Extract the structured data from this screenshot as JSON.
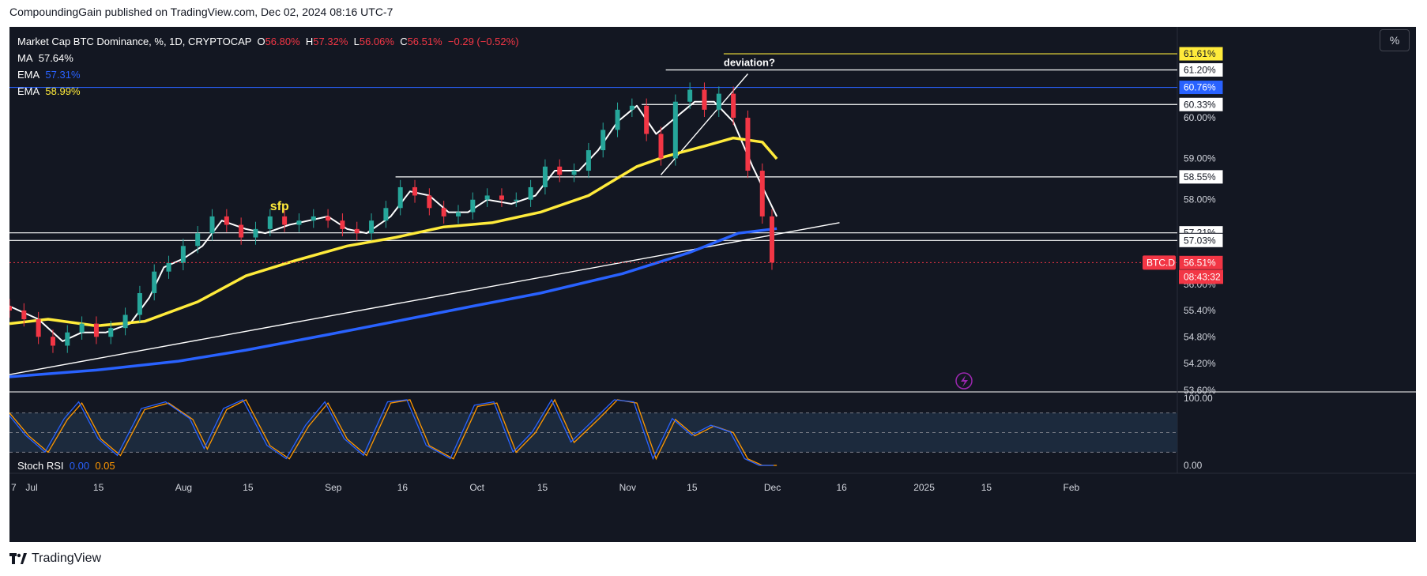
{
  "publisher": "CompoundingGain published on TradingView.com, Dec 02, 2024 08:16 UTC-7",
  "footer": {
    "brand": "TradingView",
    "logo_icon": "tradingview-logo-icon"
  },
  "toolbar": {
    "percent_button": "%"
  },
  "legend": {
    "symbol": "Market Cap BTC Dominance, %, 1D, CRYPTOCAP",
    "o_label": "O",
    "o": "56.80%",
    "h_label": "H",
    "h": "57.32%",
    "l_label": "L",
    "l": "56.06%",
    "c_label": "C",
    "c": "56.51%",
    "change": "−0.29 (−0.52%)",
    "ma_label": "MA",
    "ma": "57.64%",
    "ema1_label": "EMA",
    "ema1": "57.31%",
    "ema2_label": "EMA",
    "ema2": "58.99%"
  },
  "stoch": {
    "label": "Stoch RSI",
    "k": "0.00",
    "d": "0.05"
  },
  "colors": {
    "background": "#131722",
    "up": "#26a69a",
    "down": "#f23645",
    "ma_line": "#ffffff",
    "ema_fast": "#2962ff",
    "ema_slow": "#ffeb3b",
    "stoch_k": "#2962ff",
    "stoch_d": "#ff9800",
    "price_badge": "#f23645"
  },
  "chart_data": [
    {
      "type": "candlestick",
      "title": "Market Cap BTC Dominance, %, 1D, CRYPTOCAP",
      "y_axis_scale": "log",
      "ylim": [
        53.6,
        62.3
      ],
      "y_ticks": [
        "53.60%",
        "54.20%",
        "54.80%",
        "55.40%",
        "56.00%",
        "58.00%",
        "59.00%",
        "60.00%"
      ],
      "x_ticks": [
        {
          "date": "2024-06-27",
          "label": "7"
        },
        {
          "date": "2024-07-01",
          "label": "Jul"
        },
        {
          "date": "2024-07-15",
          "label": "15"
        },
        {
          "date": "2024-08-01",
          "label": "Aug"
        },
        {
          "date": "2024-08-15",
          "label": "15"
        },
        {
          "date": "2024-09-01",
          "label": "Sep"
        },
        {
          "date": "2024-09-16",
          "label": "16"
        },
        {
          "date": "2024-10-01",
          "label": "Oct"
        },
        {
          "date": "2024-10-15",
          "label": "15"
        },
        {
          "date": "2024-11-01",
          "label": "Nov"
        },
        {
          "date": "2024-11-15",
          "label": "15"
        },
        {
          "date": "2024-12-01",
          "label": "Dec"
        },
        {
          "date": "2024-12-16",
          "label": "16"
        },
        {
          "date": "2025-01-01",
          "label": "2025"
        },
        {
          "date": "2025-01-15",
          "label": "15"
        },
        {
          "date": "2025-02-01",
          "label": "Feb"
        }
      ],
      "x_range": [
        "2024-06-27",
        "2025-02-24"
      ],
      "last_close": 56.51,
      "price_labels": [
        {
          "text": "61.61%",
          "value": 61.61,
          "style": "yellow"
        },
        {
          "text": "61.20%",
          "value": 61.2,
          "style": "white"
        },
        {
          "text": "60.76%",
          "value": 60.76,
          "style": "blue"
        },
        {
          "text": "60.33%",
          "value": 60.33,
          "style": "white"
        },
        {
          "text": "58.55%",
          "value": 58.55,
          "style": "white"
        },
        {
          "text": "57.21%",
          "value": 57.21,
          "style": "white"
        },
        {
          "text": "57.03%",
          "value": 57.03,
          "style": "white"
        },
        {
          "text": "56.51%",
          "value": 56.51,
          "style": "red"
        }
      ],
      "symbol_badge": "BTC.D",
      "countdown": "08:43:32",
      "annotations": [
        {
          "text": "sfp",
          "date": "2024-08-20",
          "value": 57.75
        },
        {
          "text": "deviation?",
          "date": "2024-11-22",
          "value": 61.3
        }
      ],
      "horizontal_levels": [
        {
          "value": 61.61,
          "from": "2024-11-22",
          "color": "#ffeb3b"
        },
        {
          "value": 61.2,
          "from": "2024-11-10",
          "color": "#ffffff"
        },
        {
          "value": 60.76,
          "from": "2024-06-27",
          "color": "#2962ff"
        },
        {
          "value": 60.33,
          "from": "2024-11-05",
          "color": "#ffffff"
        },
        {
          "value": 58.55,
          "from": "2024-09-15",
          "color": "#ffffff"
        },
        {
          "value": 57.21,
          "from": "2024-06-27",
          "color": "#ffffff"
        },
        {
          "value": 57.03,
          "from": "2024-06-27",
          "color": "#ffffff"
        }
      ],
      "trendlines": [
        {
          "from": [
            "2024-06-27",
            53.95
          ],
          "to": [
            "2024-12-16",
            57.45
          ]
        },
        {
          "from": [
            "2024-11-09",
            58.6
          ],
          "to": [
            "2024-11-27",
            61.1
          ]
        }
      ],
      "series": [
        {
          "name": "MA",
          "value": 57.64,
          "color": "#ffffff",
          "points": [
            [
              "2024-06-27",
              55.5
            ],
            [
              "2024-07-03",
              55.2
            ],
            [
              "2024-07-08",
              54.7
            ],
            [
              "2024-07-12",
              54.9
            ],
            [
              "2024-07-17",
              54.9
            ],
            [
              "2024-07-22",
              55.1
            ],
            [
              "2024-07-26",
              55.7
            ],
            [
              "2024-07-29",
              56.4
            ],
            [
              "2024-08-02",
              56.6
            ],
            [
              "2024-08-06",
              56.9
            ],
            [
              "2024-08-10",
              57.5
            ],
            [
              "2024-08-15",
              57.3
            ],
            [
              "2024-08-19",
              57.2
            ],
            [
              "2024-08-24",
              57.4
            ],
            [
              "2024-08-28",
              57.5
            ],
            [
              "2024-09-01",
              57.6
            ],
            [
              "2024-09-05",
              57.3
            ],
            [
              "2024-09-09",
              57.2
            ],
            [
              "2024-09-14",
              57.6
            ],
            [
              "2024-09-18",
              58.2
            ],
            [
              "2024-09-22",
              58.1
            ],
            [
              "2024-09-26",
              57.7
            ],
            [
              "2024-09-30",
              57.7
            ],
            [
              "2024-10-04",
              58.0
            ],
            [
              "2024-10-09",
              57.9
            ],
            [
              "2024-10-14",
              58.1
            ],
            [
              "2024-10-18",
              58.7
            ],
            [
              "2024-10-23",
              58.7
            ],
            [
              "2024-10-27",
              59.2
            ],
            [
              "2024-10-31",
              59.9
            ],
            [
              "2024-11-04",
              60.3
            ],
            [
              "2024-11-08",
              59.6
            ],
            [
              "2024-11-12",
              60.0
            ],
            [
              "2024-11-16",
              60.4
            ],
            [
              "2024-11-20",
              60.4
            ],
            [
              "2024-11-24",
              59.9
            ],
            [
              "2024-11-28",
              58.8
            ],
            [
              "2024-12-03",
              57.6
            ]
          ]
        },
        {
          "name": "EMA",
          "value": 57.31,
          "color": "#2962ff",
          "points": [
            [
              "2024-06-27",
              53.9
            ],
            [
              "2024-07-15",
              54.05
            ],
            [
              "2024-08-01",
              54.25
            ],
            [
              "2024-08-15",
              54.5
            ],
            [
              "2024-09-01",
              54.85
            ],
            [
              "2024-09-15",
              55.15
            ],
            [
              "2024-10-01",
              55.5
            ],
            [
              "2024-10-15",
              55.8
            ],
            [
              "2024-11-01",
              56.25
            ],
            [
              "2024-11-15",
              56.75
            ],
            [
              "2024-11-25",
              57.2
            ],
            [
              "2024-12-03",
              57.31
            ]
          ]
        },
        {
          "name": "EMA",
          "value": 58.99,
          "color": "#ffeb3b",
          "points": [
            [
              "2024-06-27",
              55.1
            ],
            [
              "2024-07-05",
              55.2
            ],
            [
              "2024-07-15",
              55.05
            ],
            [
              "2024-07-25",
              55.15
            ],
            [
              "2024-08-05",
              55.6
            ],
            [
              "2024-08-15",
              56.2
            ],
            [
              "2024-08-25",
              56.55
            ],
            [
              "2024-09-05",
              56.9
            ],
            [
              "2024-09-15",
              57.1
            ],
            [
              "2024-09-25",
              57.35
            ],
            [
              "2024-10-05",
              57.45
            ],
            [
              "2024-10-15",
              57.7
            ],
            [
              "2024-10-25",
              58.1
            ],
            [
              "2024-11-04",
              58.8
            ],
            [
              "2024-11-10",
              59.05
            ],
            [
              "2024-11-18",
              59.3
            ],
            [
              "2024-11-24",
              59.5
            ],
            [
              "2024-11-30",
              59.4
            ],
            [
              "2024-12-03",
              58.99
            ]
          ]
        }
      ],
      "candles_close": [
        [
          "2024-06-27",
          55.4
        ],
        [
          "2024-06-30",
          55.2
        ],
        [
          "2024-07-03",
          54.8
        ],
        [
          "2024-07-06",
          54.6
        ],
        [
          "2024-07-09",
          54.9
        ],
        [
          "2024-07-12",
          55.1
        ],
        [
          "2024-07-15",
          54.8
        ],
        [
          "2024-07-18",
          55.0
        ],
        [
          "2024-07-21",
          55.3
        ],
        [
          "2024-07-24",
          55.8
        ],
        [
          "2024-07-27",
          56.3
        ],
        [
          "2024-07-30",
          56.5
        ],
        [
          "2024-08-02",
          56.9
        ],
        [
          "2024-08-05",
          57.2
        ],
        [
          "2024-08-08",
          57.6
        ],
        [
          "2024-08-11",
          57.4
        ],
        [
          "2024-08-14",
          57.1
        ],
        [
          "2024-08-17",
          57.3
        ],
        [
          "2024-08-20",
          57.6
        ],
        [
          "2024-08-23",
          57.4
        ],
        [
          "2024-08-26",
          57.5
        ],
        [
          "2024-08-29",
          57.6
        ],
        [
          "2024-09-01",
          57.5
        ],
        [
          "2024-09-04",
          57.3
        ],
        [
          "2024-09-07",
          57.2
        ],
        [
          "2024-09-10",
          57.5
        ],
        [
          "2024-09-13",
          57.8
        ],
        [
          "2024-09-16",
          58.3
        ],
        [
          "2024-09-19",
          58.1
        ],
        [
          "2024-09-22",
          57.8
        ],
        [
          "2024-09-25",
          57.6
        ],
        [
          "2024-09-28",
          57.7
        ],
        [
          "2024-10-01",
          58.0
        ],
        [
          "2024-10-04",
          58.1
        ],
        [
          "2024-10-07",
          58.0
        ],
        [
          "2024-10-10",
          58.0
        ],
        [
          "2024-10-13",
          58.3
        ],
        [
          "2024-10-16",
          58.8
        ],
        [
          "2024-10-19",
          58.6
        ],
        [
          "2024-10-22",
          58.7
        ],
        [
          "2024-10-25",
          59.2
        ],
        [
          "2024-10-28",
          59.7
        ],
        [
          "2024-10-31",
          60.2
        ],
        [
          "2024-11-03",
          60.3
        ],
        [
          "2024-11-06",
          59.6
        ],
        [
          "2024-11-09",
          59.0
        ],
        [
          "2024-11-12",
          60.4
        ],
        [
          "2024-11-15",
          60.7
        ],
        [
          "2024-11-18",
          60.2
        ],
        [
          "2024-11-21",
          60.6
        ],
        [
          "2024-11-24",
          60.0
        ],
        [
          "2024-11-27",
          58.7
        ],
        [
          "2024-11-30",
          57.6
        ],
        [
          "2024-12-02",
          56.51
        ]
      ]
    },
    {
      "type": "line",
      "title": "Stoch RSI",
      "ylim": [
        0,
        100
      ],
      "y_ticks": [
        "100.00",
        "0.00"
      ],
      "bands": [
        80,
        50,
        20
      ],
      "series": [
        {
          "name": "K",
          "value": 0.0,
          "color": "#2962ff"
        },
        {
          "name": "D",
          "value": 0.05,
          "color": "#ff9800"
        }
      ],
      "points_d": [
        [
          "2024-06-27",
          80
        ],
        [
          "2024-07-01",
          45
        ],
        [
          "2024-07-05",
          20
        ],
        [
          "2024-07-09",
          70
        ],
        [
          "2024-07-12",
          95
        ],
        [
          "2024-07-16",
          40
        ],
        [
          "2024-07-20",
          15
        ],
        [
          "2024-07-25",
          85
        ],
        [
          "2024-07-30",
          95
        ],
        [
          "2024-08-04",
          70
        ],
        [
          "2024-08-07",
          25
        ],
        [
          "2024-08-11",
          85
        ],
        [
          "2024-08-15",
          100
        ],
        [
          "2024-08-20",
          30
        ],
        [
          "2024-08-24",
          10
        ],
        [
          "2024-08-28",
          60
        ],
        [
          "2024-09-01",
          95
        ],
        [
          "2024-09-05",
          40
        ],
        [
          "2024-09-09",
          15
        ],
        [
          "2024-09-14",
          95
        ],
        [
          "2024-09-18",
          100
        ],
        [
          "2024-09-22",
          30
        ],
        [
          "2024-09-27",
          10
        ],
        [
          "2024-10-02",
          90
        ],
        [
          "2024-10-06",
          95
        ],
        [
          "2024-10-10",
          20
        ],
        [
          "2024-10-14",
          50
        ],
        [
          "2024-10-18",
          100
        ],
        [
          "2024-10-22",
          35
        ],
        [
          "2024-10-27",
          70
        ],
        [
          "2024-10-31",
          100
        ],
        [
          "2024-11-04",
          95
        ],
        [
          "2024-11-08",
          10
        ],
        [
          "2024-11-12",
          70
        ],
        [
          "2024-11-16",
          45
        ],
        [
          "2024-11-20",
          60
        ],
        [
          "2024-11-24",
          50
        ],
        [
          "2024-11-27",
          10
        ],
        [
          "2024-11-30",
          0
        ],
        [
          "2024-12-03",
          0
        ]
      ]
    }
  ]
}
